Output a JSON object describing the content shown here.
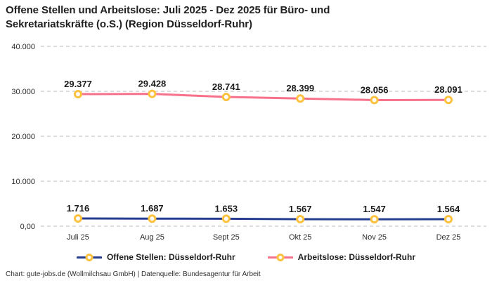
{
  "title": "Offene Stellen und Arbeitslose: Juli 2025 - Dez 2025 für Büro- und Sekretariatskräfte (o.S.) (Region Düsseldorf-Ruhr)",
  "footer": "Chart: gute-jobs.de (Wollmilchsau GmbH) | Datenquelle: Bundesagentur für Arbeit",
  "colors": {
    "offene_stellen": "#253e90",
    "arbeitslose": "#f8718a",
    "marker_ring": "#fcc23f",
    "marker_fill": "#ffffff",
    "grid": "#c8c8c8",
    "label_text": "#1a1a1a",
    "axis_text": "#2b2b2b"
  },
  "chart_data": {
    "type": "line",
    "categories": [
      "Juli 25",
      "Aug 25",
      "Sept 25",
      "Okt 25",
      "Nov 25",
      "Dez 25"
    ],
    "series": [
      {
        "name": "Offene Stellen: Düsseldorf-Ruhr",
        "values": [
          1716,
          1687,
          1653,
          1567,
          1547,
          1564
        ],
        "labels": [
          "1.716",
          "1.687",
          "1.653",
          "1.567",
          "1.547",
          "1.564"
        ],
        "color_key": "offene_stellen"
      },
      {
        "name": "Arbeitslose: Düsseldorf-Ruhr",
        "values": [
          29377,
          29428,
          28741,
          28399,
          28056,
          28091
        ],
        "labels": [
          "29.377",
          "29.428",
          "28.741",
          "28.399",
          "28.056",
          "28.091"
        ],
        "color_key": "arbeitslose"
      }
    ],
    "y_ticks": [
      {
        "value": 0,
        "label": "0,00"
      },
      {
        "value": 10000,
        "label": "10.000"
      },
      {
        "value": 20000,
        "label": "20.000"
      },
      {
        "value": 30000,
        "label": "30.000"
      },
      {
        "value": 40000,
        "label": "40.000"
      }
    ],
    "ylim": [
      0,
      40000
    ],
    "grid": true,
    "legend_position": "bottom"
  }
}
